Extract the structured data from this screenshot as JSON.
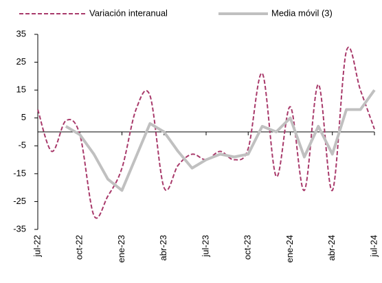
{
  "chart_data": {
    "type": "line",
    "categories": [
      "jul-22",
      null,
      null,
      "oct-22",
      null,
      null,
      "ene-23",
      null,
      null,
      "abr-23",
      null,
      null,
      "jul-23",
      null,
      null,
      "oct-23",
      null,
      null,
      "ene-24",
      null,
      null,
      "abr-24",
      null,
      null,
      "jul-24"
    ],
    "series": [
      {
        "name": "Variación interanual",
        "color": "#a8396a",
        "dashed": true,
        "values": [
          8,
          -7,
          4,
          -1,
          -30,
          -23,
          -13,
          8,
          13,
          -20,
          -12,
          -8,
          -10,
          -7,
          -10,
          -6,
          21,
          -16,
          9,
          -21,
          17,
          -21,
          29,
          15,
          1
        ]
      },
      {
        "name": "Media móvil (3)",
        "color": "#c0c0c0",
        "dashed": false,
        "values": [
          null,
          null,
          2,
          -1,
          -8,
          -17,
          -21,
          -9,
          3,
          0,
          -7,
          -13,
          -10,
          -8,
          -9,
          -8,
          2,
          0,
          5,
          -9,
          2,
          -8,
          8,
          8,
          15
        ]
      }
    ],
    "ylim": [
      -35,
      35
    ],
    "yticks": [
      -35,
      -25,
      -15,
      -5,
      5,
      15,
      25,
      35
    ]
  }
}
